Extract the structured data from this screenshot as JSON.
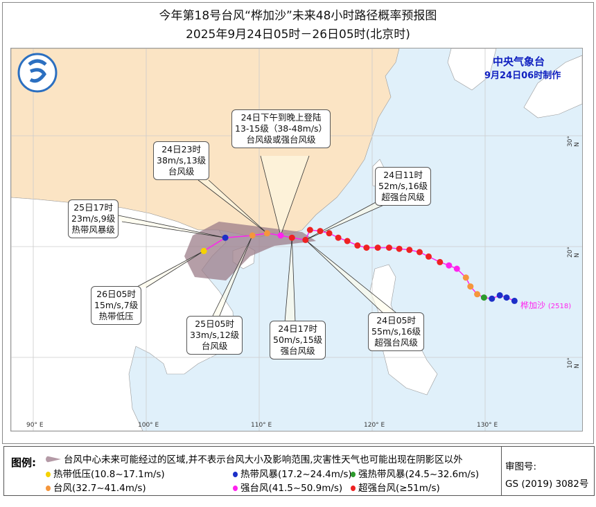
{
  "title": "今年第18号台风“桦加沙”未来48小时路径概率预报图",
  "subtitle": "2025年9月24日05时－26日05时(北京时)",
  "agency": {
    "name": "中央气象台",
    "issued": "9月24日06时制作"
  },
  "axes": {
    "lon": [
      "90° E",
      "100° E",
      "110° E",
      "120° E",
      "130° E"
    ],
    "lat": [
      "30° N",
      "20° N",
      "10° N"
    ]
  },
  "typhoon_label": "桦加沙",
  "typhoon_id": "(2518)",
  "colors": {
    "td": "#f5d200",
    "ts": "#1c2fc8",
    "sts": "#2c9a2c",
    "ty": "#f5963c",
    "sty": "#ff22ee",
    "super": "#ee2222",
    "cone": "#9c7e8a",
    "land_china": "#fbe4c4",
    "sea": "#e0f0fa",
    "track_line": "#ff22ee"
  },
  "annotations": [
    {
      "l1": "24日下午到晚上登陆",
      "l2": "13-15级（38-48m/s）",
      "l3": "台风级或强台风级"
    },
    {
      "l1": "24日23时",
      "l2": "38m/s,13级",
      "l3": "台风级"
    },
    {
      "l1": "25日17时",
      "l2": "23m/s,9级",
      "l3": "热带风暴级"
    },
    {
      "l1": "24日11时",
      "l2": "52m/s,16级",
      "l3": "超强台风级"
    },
    {
      "l1": "26日05时",
      "l2": "15m/s,7级",
      "l3": "热带低压"
    },
    {
      "l1": "25日05时",
      "l2": "33m/s,12级",
      "l3": "台风级"
    },
    {
      "l1": "24日17时",
      "l2": "50m/s,15级",
      "l3": "强台风级"
    },
    {
      "l1": "24日05时",
      "l2": "55m/s,16级",
      "l3": "超强台风级"
    }
  ],
  "track": [
    {
      "lon": 132.6,
      "lat": 15.1,
      "cat": "ts"
    },
    {
      "lon": 131.9,
      "lat": 15.4,
      "cat": "ts"
    },
    {
      "lon": 131.3,
      "lat": 15.6,
      "cat": "ts"
    },
    {
      "lon": 130.6,
      "lat": 15.3,
      "cat": "ts"
    },
    {
      "lon": 129.9,
      "lat": 15.4,
      "cat": "sts"
    },
    {
      "lon": 129.3,
      "lat": 15.7,
      "cat": "ty"
    },
    {
      "lon": 128.7,
      "lat": 16.4,
      "cat": "ty"
    },
    {
      "lon": 128.3,
      "lat": 17.2,
      "cat": "ty"
    },
    {
      "lon": 127.5,
      "lat": 18.0,
      "cat": "sty"
    },
    {
      "lon": 126.8,
      "lat": 18.3,
      "cat": "sty"
    },
    {
      "lon": 126.0,
      "lat": 18.6,
      "cat": "super"
    },
    {
      "lon": 125.0,
      "lat": 19.1,
      "cat": "super"
    },
    {
      "lon": 124.2,
      "lat": 19.5,
      "cat": "super"
    },
    {
      "lon": 123.3,
      "lat": 19.7,
      "cat": "super"
    },
    {
      "lon": 122.4,
      "lat": 19.8,
      "cat": "super"
    },
    {
      "lon": 121.5,
      "lat": 19.9,
      "cat": "super"
    },
    {
      "lon": 120.5,
      "lat": 19.9,
      "cat": "super"
    },
    {
      "lon": 119.5,
      "lat": 19.9,
      "cat": "super"
    },
    {
      "lon": 118.7,
      "lat": 20.1,
      "cat": "super"
    },
    {
      "lon": 117.8,
      "lat": 20.5,
      "cat": "super"
    },
    {
      "lon": 117.0,
      "lat": 20.8,
      "cat": "super"
    },
    {
      "lon": 116.2,
      "lat": 21.2,
      "cat": "super"
    },
    {
      "lon": 115.4,
      "lat": 21.4,
      "cat": "super"
    },
    {
      "lon": 114.5,
      "lat": 21.5,
      "cat": "super"
    }
  ],
  "forecast": [
    {
      "lon": 114.1,
      "lat": 20.6,
      "cat": "super"
    },
    {
      "lon": 112.9,
      "lat": 20.8,
      "cat": "super"
    },
    {
      "lon": 111.9,
      "lat": 21.0,
      "cat": "sty"
    },
    {
      "lon": 110.7,
      "lat": 21.2,
      "cat": "ty"
    },
    {
      "lon": 109.4,
      "lat": 21.0,
      "cat": "ty"
    },
    {
      "lon": 107.0,
      "lat": 20.8,
      "cat": "ts"
    },
    {
      "lon": 105.1,
      "lat": 19.6,
      "cat": "td"
    }
  ],
  "legend": {
    "title": "图例:",
    "cone": "台风中心未来可能经过的区域,并不表示台风大小及影响范围,灾害性天气也可能出现在阴影区以外",
    "items": [
      {
        "cat": "td",
        "label": "热带低压(10.8~17.1m/s)"
      },
      {
        "cat": "ts",
        "label": "热带风暴(17.2~24.4m/s)"
      },
      {
        "cat": "sts",
        "label": "强热带风暴(24.5~32.6m/s)"
      },
      {
        "cat": "ty",
        "label": "台风(32.7~41.4m/s)"
      },
      {
        "cat": "sty",
        "label": "强台风(41.5~50.9m/s)"
      },
      {
        "cat": "super",
        "label": "超强台风(≥51m/s)"
      }
    ],
    "review_label": "审图号:",
    "review_no": "GS (2019) 3082号"
  }
}
